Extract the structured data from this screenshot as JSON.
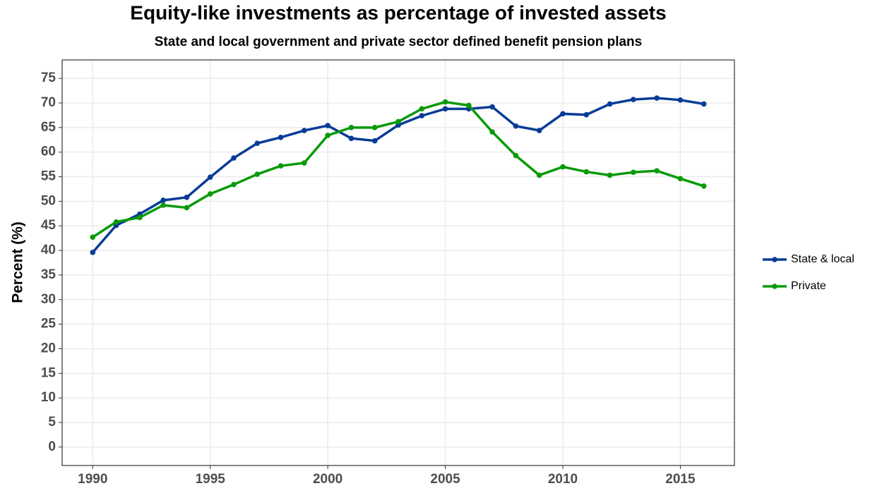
{
  "chart_data": {
    "type": "line",
    "title": "Equity-like investments as percentage of invested assets",
    "subtitle": "State and local government and private sector defined benefit pension plans",
    "y_label": "Percent (%)",
    "x": [
      1990,
      1991,
      1992,
      1993,
      1994,
      1995,
      1996,
      1997,
      1998,
      1999,
      2000,
      2001,
      2002,
      2003,
      2004,
      2005,
      2006,
      2007,
      2008,
      2009,
      2010,
      2011,
      2012,
      2013,
      2014,
      2015,
      2016
    ],
    "series": [
      {
        "name": "State & local",
        "color": "#083c96",
        "values": [
          39.6,
          45.1,
          47.4,
          50.2,
          50.8,
          54.9,
          58.8,
          61.8,
          63.0,
          64.4,
          65.4,
          62.8,
          62.3,
          65.5,
          67.4,
          68.8,
          68.8,
          69.2,
          65.3,
          64.4,
          67.8,
          67.6,
          69.8,
          70.7,
          71.0,
          70.6,
          69.8
        ]
      },
      {
        "name": "Private",
        "color": "#0a9a0a",
        "values": [
          42.7,
          45.8,
          46.7,
          49.2,
          48.7,
          51.5,
          53.4,
          55.5,
          57.2,
          57.8,
          63.4,
          65.0,
          65.0,
          66.2,
          68.8,
          70.2,
          69.5,
          64.1,
          59.3,
          55.3,
          57.0,
          56.0,
          55.3,
          55.9,
          56.2,
          54.6,
          53.1
        ]
      }
    ],
    "xlim": [
      1988.7,
      2017.3
    ],
    "xticks": [
      1990,
      1995,
      2000,
      2005,
      2010,
      2015
    ],
    "ylim": [
      -3.75,
      78.75
    ],
    "yticks": [
      0,
      5,
      10,
      15,
      20,
      25,
      30,
      35,
      40,
      45,
      50,
      55,
      60,
      65,
      70,
      75
    ],
    "grid": true,
    "legend": "right"
  }
}
